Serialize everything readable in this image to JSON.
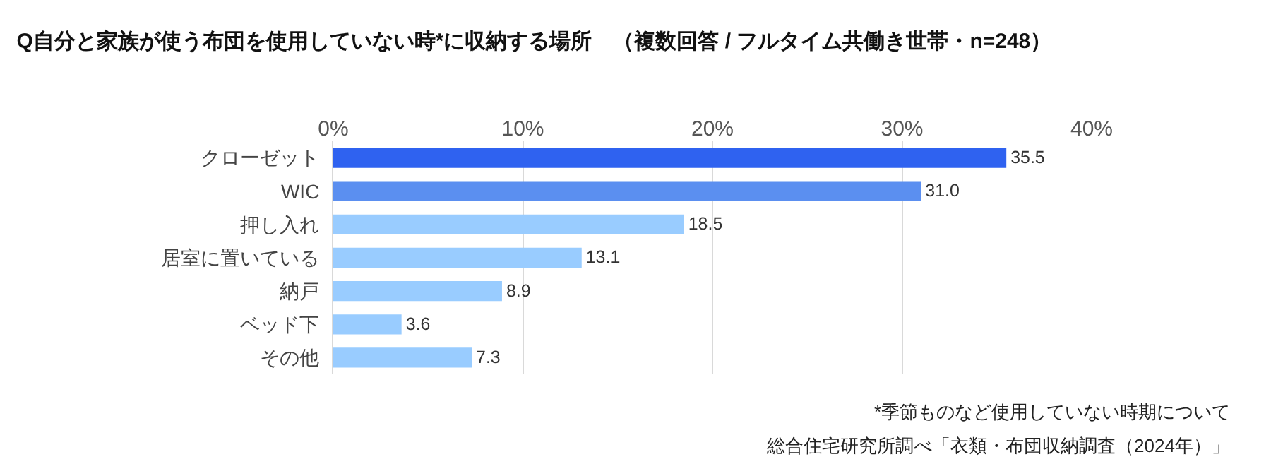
{
  "chart_data": {
    "type": "bar",
    "orientation": "horizontal",
    "title": "Q自分と家族が使う布団を使用していない時*に収納する場所　（複数回答 / フルタイム共働き世帯・n=248）",
    "categories": [
      "クローゼット",
      "WIC",
      "押し入れ",
      "居室に置いている",
      "納戸",
      "ベッド下",
      "その他"
    ],
    "values": [
      35.5,
      31.0,
      18.5,
      13.1,
      8.9,
      3.6,
      7.3
    ],
    "value_labels": [
      "35.5",
      "31.0",
      "18.5",
      "13.1",
      "8.9",
      "3.6",
      "7.3"
    ],
    "colors": [
      "#2f62f0",
      "#5b8ff0",
      "#99ccff",
      "#99ccff",
      "#99ccff",
      "#99ccff",
      "#99ccff"
    ],
    "xlim": [
      0,
      40
    ],
    "xticks": [
      {
        "value": 0,
        "label": "0%"
      },
      {
        "value": 10,
        "label": "10%"
      },
      {
        "value": 20,
        "label": "20%"
      },
      {
        "value": 30,
        "label": "30%"
      },
      {
        "value": 40,
        "label": "40%"
      }
    ],
    "grid": "x",
    "annotations": [
      "*季節ものなど使用していない時期について",
      "総合住宅研究所調べ「衣類・布団収納調査（2024年）」"
    ]
  }
}
